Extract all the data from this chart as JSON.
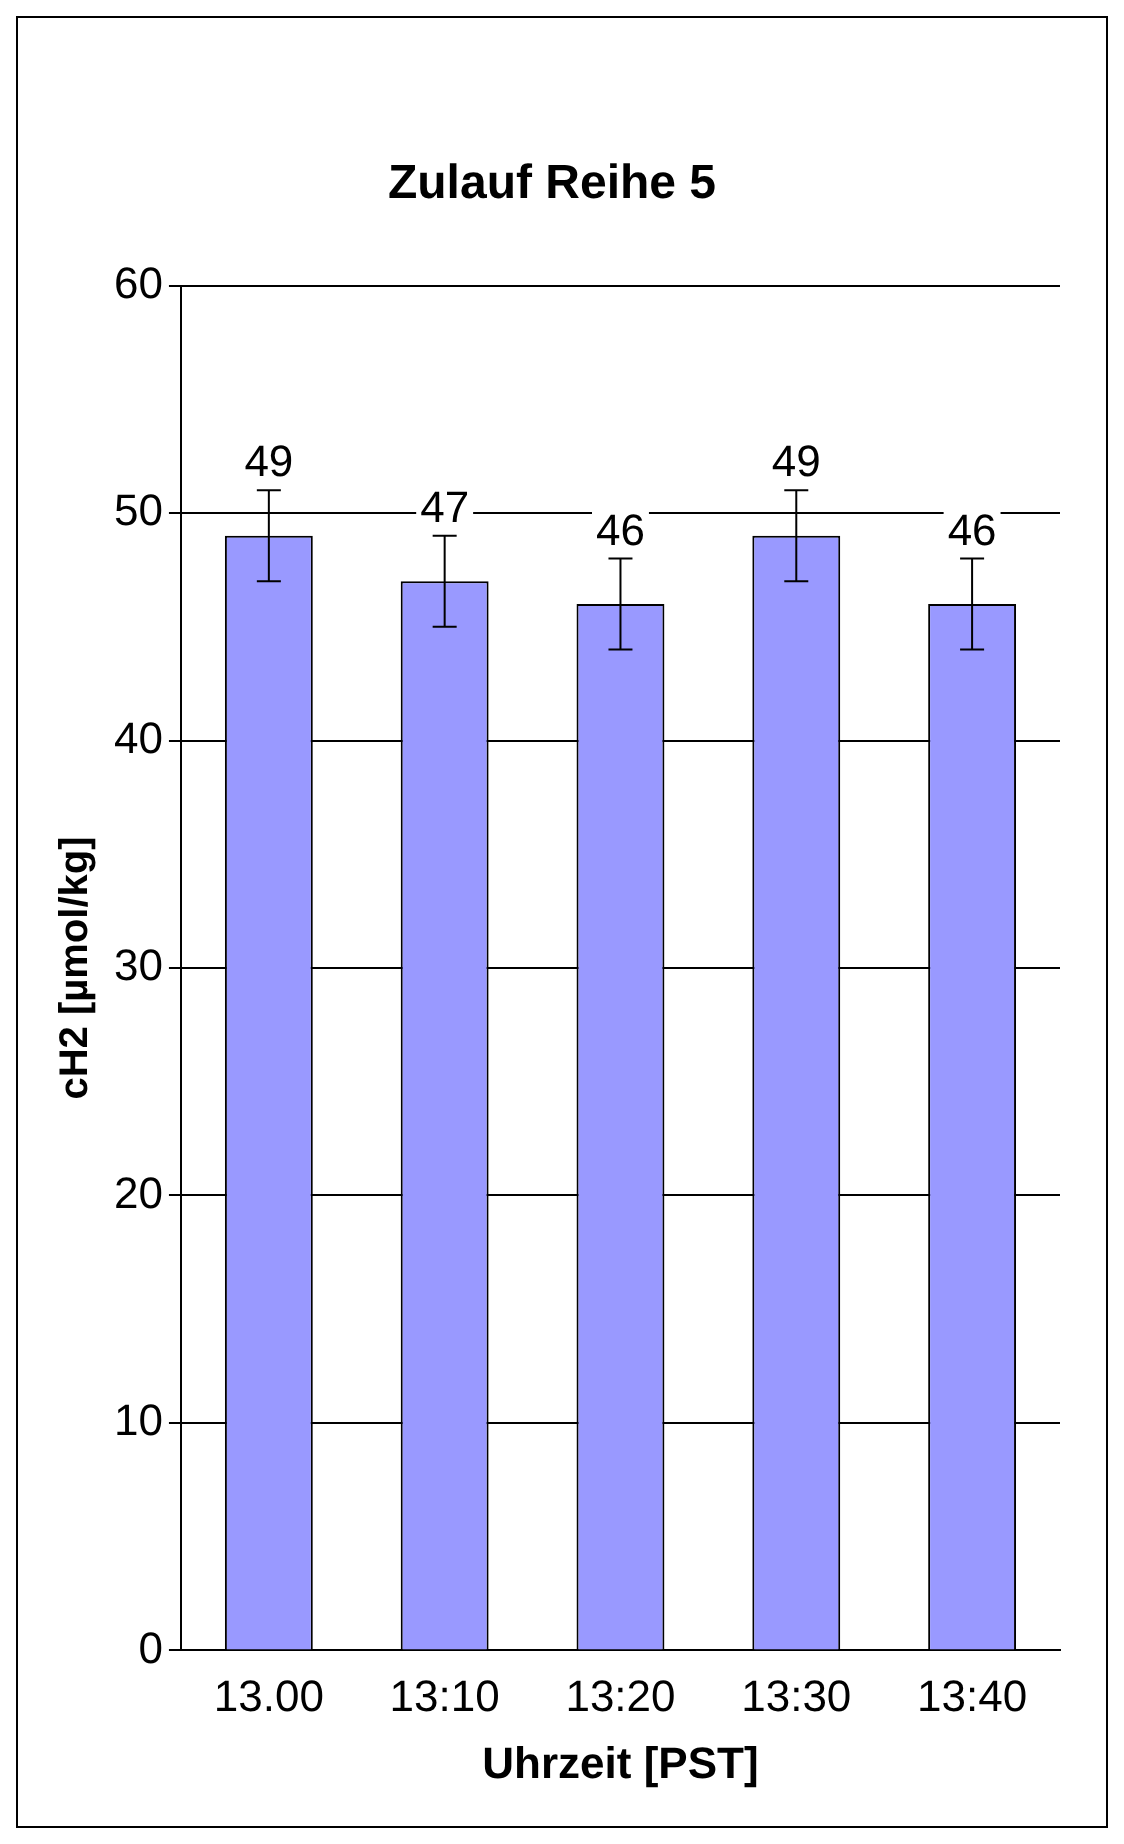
{
  "chart_data": {
    "type": "bar",
    "title": "Zulauf Reihe 5",
    "xlabel": "Uhrzeit [PST]",
    "ylabel": "cH2 [µmol/kg]",
    "categories": [
      "13.00",
      "13:10",
      "13:20",
      "13:30",
      "13:40"
    ],
    "values": [
      49,
      47,
      46,
      49,
      46
    ],
    "errors": [
      2,
      2,
      2,
      2,
      2
    ],
    "color": "#9999ff",
    "ylim": [
      0,
      60
    ],
    "yticks": [
      0,
      10,
      20,
      30,
      40,
      50,
      60
    ],
    "grid": "y",
    "data_labels": true,
    "legend": false
  }
}
